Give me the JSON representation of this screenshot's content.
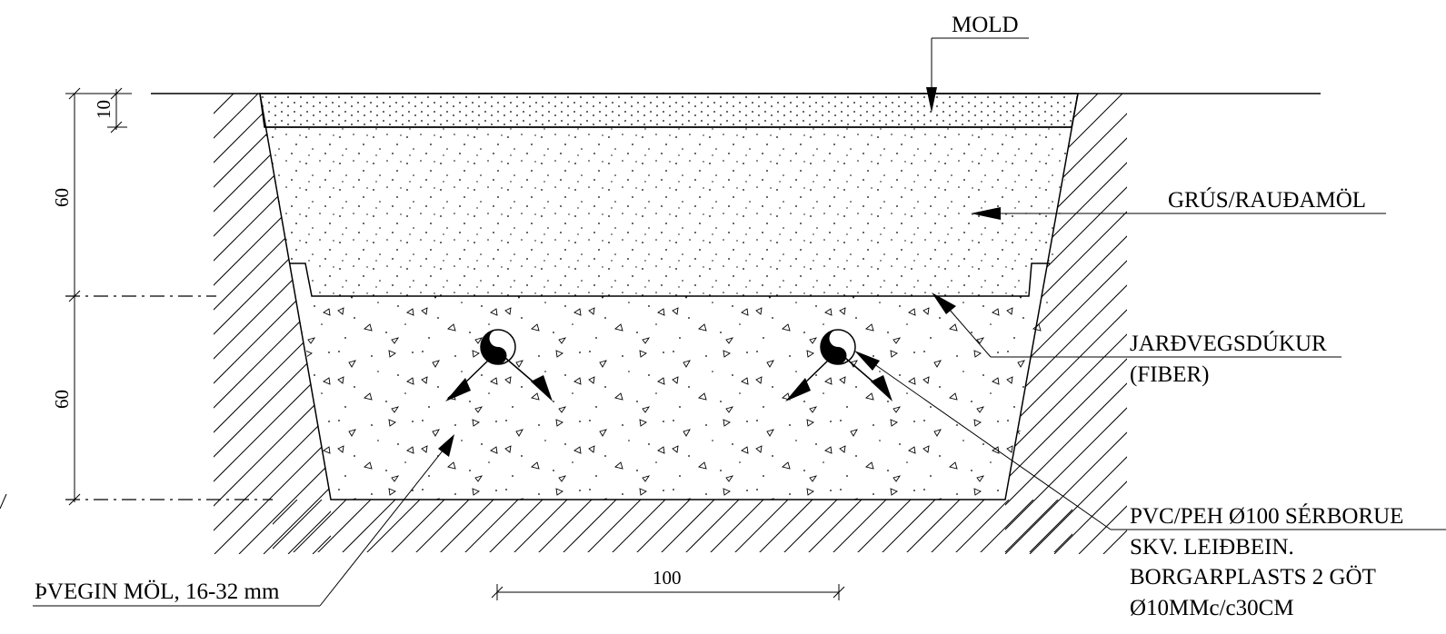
{
  "labels": {
    "mold": "MOLD",
    "grus": "GRÚS/RAUÐAMÖL",
    "jardvegsdukur_1": "JARÐVEGSDÚKUR",
    "jardvegsdukur_2": "(FIBER)",
    "pvc_1": "PVC/PEH Ø100 SÉRBORUE",
    "pvc_2": "SKV.  LEIÐBEIN.",
    "pvc_3": "BORGARPLASTS 2 GÖT",
    "pvc_4": "Ø10MMc/c30CM",
    "gravel": "ÞVEGIN MÖL, 16-32 mm"
  },
  "dimensions": {
    "top_layer": "10",
    "upper_layer": "60",
    "lower_layer": "60",
    "bottom_width": "100"
  },
  "colors": {
    "ink": "#000000",
    "background": "#ffffff"
  }
}
